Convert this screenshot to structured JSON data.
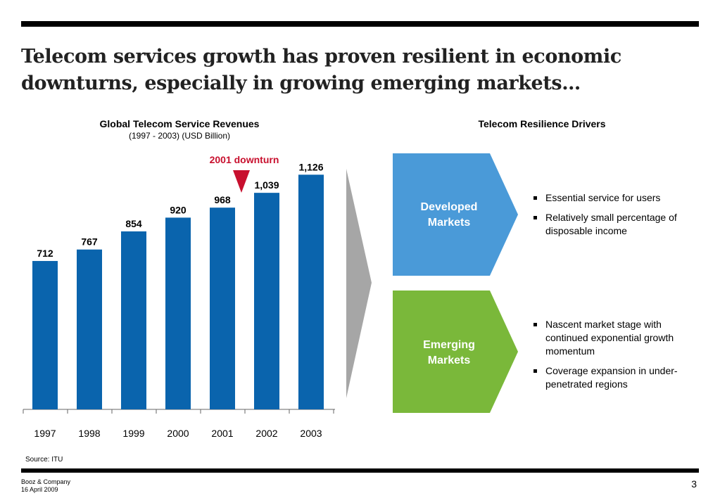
{
  "slide": {
    "title": "Telecom services growth has proven resilient in economic downturns, especially in growing emerging markets…",
    "source": "Source: ITU",
    "footer": {
      "company": "Booz & Company",
      "date": "16 April 2009",
      "page": "3"
    }
  },
  "chart_data": {
    "type": "bar",
    "title": "Global Telecom Service Revenues",
    "subtitle": "(1997 - 2003) (USD Billion)",
    "categories": [
      "1997",
      "1998",
      "1999",
      "2000",
      "2001",
      "2002",
      "2003"
    ],
    "values": [
      712,
      767,
      854,
      920,
      968,
      1039,
      1126
    ],
    "value_labels": [
      "712",
      "767",
      "854",
      "920",
      "968",
      "1,039",
      "1,126"
    ],
    "xlabel": "",
    "ylabel": "",
    "ylim": [
      0,
      1200
    ],
    "grid": false,
    "bar_color": "#0a64ad",
    "annotation": {
      "text": "2001 downturn",
      "category": "2001",
      "color": "#c8102e"
    }
  },
  "drivers": {
    "title": "Telecom Resilience Drivers",
    "arrow_color": "#a6a6a6",
    "markets": [
      {
        "label_line1": "Developed",
        "label_line2": "Markets",
        "color": "#4a9ad8",
        "bullets": [
          "Essential service for users",
          "Relatively small percentage of disposable income"
        ]
      },
      {
        "label_line1": "Emerging",
        "label_line2": "Markets",
        "color": "#7ab83a",
        "bullets": [
          "Nascent market stage with continued exponential growth momentum",
          "Coverage expansion in under- penetrated regions"
        ]
      }
    ]
  }
}
